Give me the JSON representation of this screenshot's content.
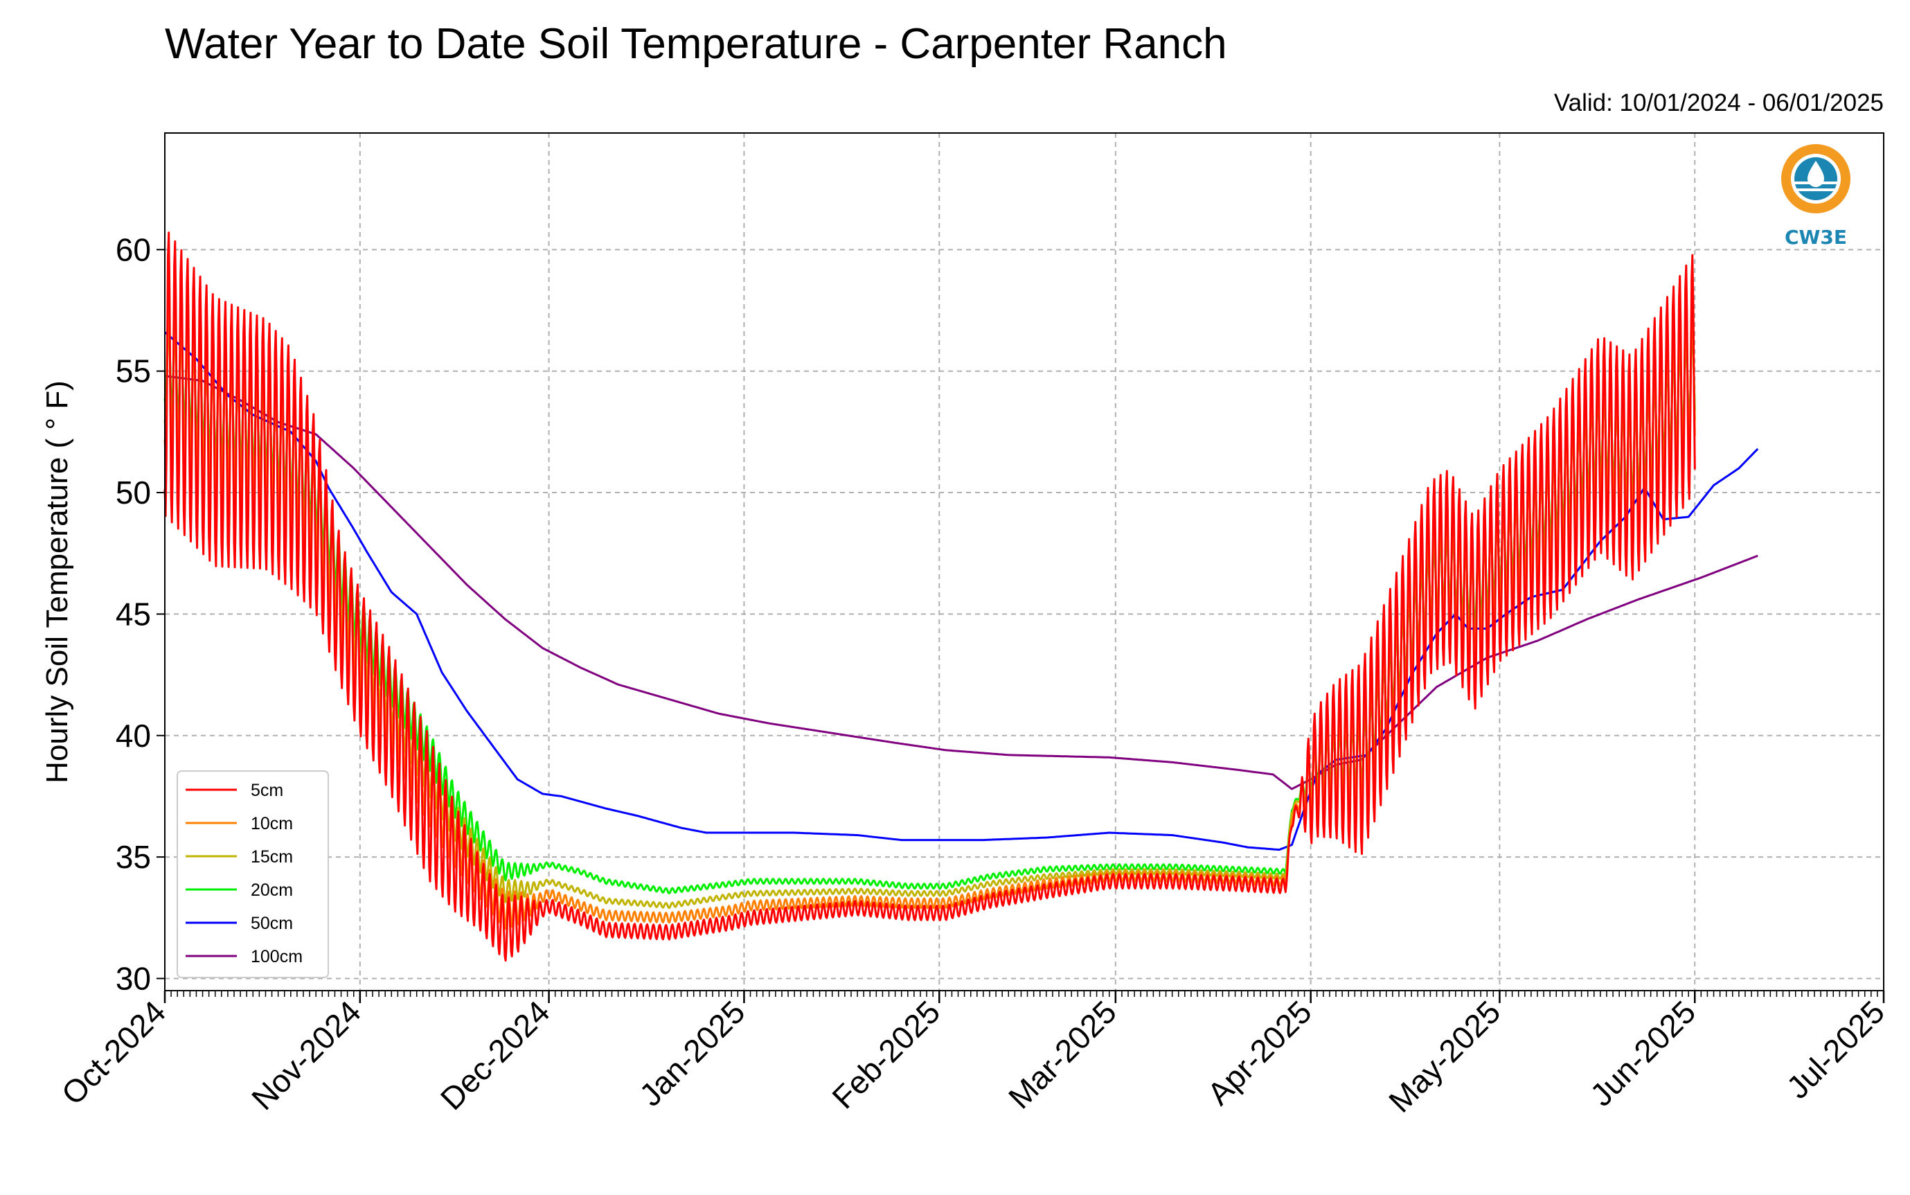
{
  "title": "Water Year to Date Soil Temperature - Carpenter Ranch",
  "valid_text": "Valid: 10/01/2024 - 06/01/2025",
  "logo_text": "CW3E",
  "chart_data": {
    "type": "line",
    "title": "Water Year to Date Soil Temperature - Carpenter Ranch",
    "ylabel": "Hourly Soil Temperature ( ° F)",
    "xlabel": "",
    "ylim": [
      29.5,
      64.8
    ],
    "yticks": [
      30,
      35,
      40,
      45,
      50,
      55,
      60
    ],
    "xlim": [
      0,
      273
    ],
    "x_unit": "days since 2024-10-01",
    "xticks": [
      {
        "day": 0,
        "label": "Oct-2024"
      },
      {
        "day": 31,
        "label": "Nov-2024"
      },
      {
        "day": 61,
        "label": "Dec-2024"
      },
      {
        "day": 92,
        "label": "Jan-2025"
      },
      {
        "day": 123,
        "label": "Feb-2025"
      },
      {
        "day": 151,
        "label": "Mar-2025"
      },
      {
        "day": 182,
        "label": "Apr-2025"
      },
      {
        "day": 212,
        "label": "May-2025"
      },
      {
        "day": 243,
        "label": "Jun-2025"
      },
      {
        "day": 273,
        "label": "Jul-2025"
      }
    ],
    "grid": true,
    "legend_position": "lower-left",
    "series": [
      {
        "name": "5cm",
        "color": "#ff0000",
        "amp": [
          [
            0,
            6
          ],
          [
            20,
            5
          ],
          [
            28,
            3
          ],
          [
            42,
            3
          ],
          [
            50,
            1.5
          ],
          [
            56,
            1.2
          ],
          [
            60,
            0.3
          ],
          [
            180,
            0.3
          ],
          [
            182,
            2.5
          ],
          [
            190,
            4
          ],
          [
            212,
            4
          ],
          [
            243,
            5
          ]
        ],
        "base": [
          [
            0,
            55
          ],
          [
            8,
            52.5
          ],
          [
            16,
            52
          ],
          [
            20,
            51
          ],
          [
            24,
            49
          ],
          [
            28,
            45
          ],
          [
            31,
            43
          ],
          [
            36,
            40.5
          ],
          [
            42,
            37
          ],
          [
            46,
            35
          ],
          [
            50,
            33.5
          ],
          [
            54,
            32
          ],
          [
            58,
            32.5
          ],
          [
            61,
            33
          ],
          [
            66,
            32.5
          ],
          [
            70,
            32
          ],
          [
            80,
            31.9
          ],
          [
            90,
            32.3
          ],
          [
            93,
            32.5
          ],
          [
            110,
            32.9
          ],
          [
            118,
            32.7
          ],
          [
            124,
            32.7
          ],
          [
            131,
            33.2
          ],
          [
            140,
            33.6
          ],
          [
            150,
            34
          ],
          [
            160,
            34
          ],
          [
            170,
            33.9
          ],
          [
            178,
            33.8
          ],
          [
            179,
            36.5
          ],
          [
            183,
            38.5
          ],
          [
            186,
            39
          ],
          [
            190,
            39
          ],
          [
            196,
            43
          ],
          [
            201,
            46.5
          ],
          [
            204,
            47
          ],
          [
            208,
            45
          ],
          [
            212,
            47
          ],
          [
            220,
            49
          ],
          [
            228,
            52
          ],
          [
            233,
            51
          ],
          [
            243,
            55
          ]
        ]
      },
      {
        "name": "10cm",
        "color": "#ff8000",
        "amp": [
          [
            0,
            3.5
          ],
          [
            20,
            3
          ],
          [
            28,
            2
          ],
          [
            42,
            1.5
          ],
          [
            50,
            0.9
          ],
          [
            56,
            0.7
          ],
          [
            60,
            0.2
          ],
          [
            180,
            0.2
          ],
          [
            182,
            1.5
          ],
          [
            190,
            2.5
          ],
          [
            212,
            2.7
          ],
          [
            243,
            3.3
          ]
        ],
        "base": [
          [
            0,
            55
          ],
          [
            8,
            52.8
          ],
          [
            16,
            52.2
          ],
          [
            20,
            51.2
          ],
          [
            24,
            49.3
          ],
          [
            28,
            45.5
          ],
          [
            31,
            43.5
          ],
          [
            36,
            41
          ],
          [
            42,
            37.8
          ],
          [
            46,
            35.8
          ],
          [
            50,
            34.2
          ],
          [
            54,
            32.8
          ],
          [
            58,
            33
          ],
          [
            61,
            33.5
          ],
          [
            66,
            33
          ],
          [
            70,
            32.6
          ],
          [
            80,
            32.5
          ],
          [
            90,
            32.8
          ],
          [
            93,
            33
          ],
          [
            110,
            33.2
          ],
          [
            118,
            33.1
          ],
          [
            124,
            33.1
          ],
          [
            131,
            33.5
          ],
          [
            140,
            33.9
          ],
          [
            150,
            34.2
          ],
          [
            160,
            34.2
          ],
          [
            170,
            34.1
          ],
          [
            178,
            34
          ],
          [
            179,
            36.7
          ],
          [
            183,
            38.6
          ],
          [
            186,
            39.1
          ],
          [
            190,
            39.2
          ],
          [
            196,
            43.1
          ],
          [
            201,
            46.5
          ],
          [
            204,
            47
          ],
          [
            208,
            45.3
          ],
          [
            212,
            47.2
          ],
          [
            220,
            49.2
          ],
          [
            228,
            52.2
          ],
          [
            233,
            51.2
          ],
          [
            243,
            55
          ]
        ]
      },
      {
        "name": "15cm",
        "color": "#c0b400",
        "amp": [
          [
            0,
            2.5
          ],
          [
            20,
            2
          ],
          [
            28,
            1.5
          ],
          [
            42,
            1
          ],
          [
            50,
            0.6
          ],
          [
            56,
            0.4
          ],
          [
            60,
            0.1
          ],
          [
            180,
            0.1
          ],
          [
            182,
            1
          ],
          [
            190,
            1.8
          ],
          [
            212,
            2
          ],
          [
            243,
            2.5
          ]
        ],
        "base": [
          [
            0,
            55
          ],
          [
            8,
            53
          ],
          [
            16,
            52.4
          ],
          [
            20,
            51.4
          ],
          [
            24,
            49.6
          ],
          [
            28,
            46
          ],
          [
            31,
            44
          ],
          [
            36,
            41.5
          ],
          [
            42,
            38.5
          ],
          [
            46,
            36.5
          ],
          [
            50,
            35
          ],
          [
            54,
            33.6
          ],
          [
            58,
            33.7
          ],
          [
            61,
            34
          ],
          [
            66,
            33.6
          ],
          [
            70,
            33.2
          ],
          [
            80,
            33
          ],
          [
            90,
            33.4
          ],
          [
            93,
            33.5
          ],
          [
            110,
            33.6
          ],
          [
            118,
            33.5
          ],
          [
            124,
            33.5
          ],
          [
            131,
            33.9
          ],
          [
            140,
            34.2
          ],
          [
            150,
            34.4
          ],
          [
            160,
            34.4
          ],
          [
            170,
            34.3
          ],
          [
            178,
            34.2
          ],
          [
            179,
            36.9
          ],
          [
            183,
            38.7
          ],
          [
            186,
            39.1
          ],
          [
            190,
            39.2
          ],
          [
            196,
            43.2
          ],
          [
            201,
            46.4
          ],
          [
            204,
            47
          ],
          [
            208,
            45.5
          ],
          [
            212,
            47.4
          ],
          [
            220,
            49.4
          ],
          [
            228,
            52.3
          ],
          [
            233,
            51.4
          ],
          [
            243,
            55
          ]
        ]
      },
      {
        "name": "20cm",
        "color": "#00ee00",
        "amp": [
          [
            0,
            2
          ],
          [
            20,
            1.7
          ],
          [
            28,
            1.2
          ],
          [
            42,
            0.8
          ],
          [
            50,
            0.5
          ],
          [
            56,
            0.3
          ],
          [
            60,
            0.1
          ],
          [
            180,
            0.1
          ],
          [
            182,
            0.8
          ],
          [
            190,
            1.4
          ],
          [
            212,
            1.6
          ],
          [
            243,
            2
          ]
        ],
        "base": [
          [
            0,
            55.5
          ],
          [
            8,
            53.2
          ],
          [
            16,
            52.6
          ],
          [
            20,
            51.6
          ],
          [
            24,
            50
          ],
          [
            28,
            46.6
          ],
          [
            31,
            44.6
          ],
          [
            36,
            42.2
          ],
          [
            42,
            39.4
          ],
          [
            46,
            37.3
          ],
          [
            50,
            35.8
          ],
          [
            54,
            34.4
          ],
          [
            58,
            34.5
          ],
          [
            61,
            34.7
          ],
          [
            66,
            34.4
          ],
          [
            70,
            34
          ],
          [
            80,
            33.6
          ],
          [
            90,
            33.9
          ],
          [
            93,
            34
          ],
          [
            110,
            34
          ],
          [
            118,
            33.8
          ],
          [
            124,
            33.8
          ],
          [
            131,
            34.2
          ],
          [
            140,
            34.5
          ],
          [
            150,
            34.6
          ],
          [
            160,
            34.6
          ],
          [
            170,
            34.5
          ],
          [
            178,
            34.4
          ],
          [
            179,
            37
          ],
          [
            183,
            38.8
          ],
          [
            186,
            39.1
          ],
          [
            190,
            39.2
          ],
          [
            196,
            43.2
          ],
          [
            201,
            46.3
          ],
          [
            204,
            47
          ],
          [
            208,
            45.8
          ],
          [
            212,
            47.5
          ],
          [
            220,
            49.6
          ],
          [
            228,
            52.4
          ],
          [
            233,
            51.5
          ],
          [
            243,
            55
          ]
        ]
      },
      {
        "name": "50cm",
        "color": "#0000ff",
        "amp": [
          [
            0,
            0
          ]
        ],
        "base": [
          [
            0,
            56.6
          ],
          [
            5,
            55.5
          ],
          [
            10,
            54
          ],
          [
            14,
            53.2
          ],
          [
            20,
            52.5
          ],
          [
            24,
            51.3
          ],
          [
            26,
            50.2
          ],
          [
            30,
            48.5
          ],
          [
            32,
            47.6
          ],
          [
            36,
            45.9
          ],
          [
            40,
            45
          ],
          [
            44,
            42.6
          ],
          [
            48,
            41
          ],
          [
            52,
            39.6
          ],
          [
            56,
            38.2
          ],
          [
            60,
            37.6
          ],
          [
            63,
            37.5
          ],
          [
            70,
            37
          ],
          [
            75,
            36.7
          ],
          [
            82,
            36.2
          ],
          [
            86,
            36
          ],
          [
            93,
            36
          ],
          [
            100,
            36
          ],
          [
            110,
            35.9
          ],
          [
            117,
            35.7
          ],
          [
            130,
            35.7
          ],
          [
            140,
            35.8
          ],
          [
            150,
            36
          ],
          [
            160,
            35.9
          ],
          [
            168,
            35.6
          ],
          [
            172,
            35.4
          ],
          [
            177,
            35.3
          ],
          [
            179,
            35.5
          ],
          [
            181,
            37
          ],
          [
            183,
            38.4
          ],
          [
            186,
            39
          ],
          [
            191,
            39.2
          ],
          [
            194,
            40.3
          ],
          [
            198,
            42.5
          ],
          [
            202,
            44.2
          ],
          [
            205,
            45
          ],
          [
            207,
            44.4
          ],
          [
            210,
            44.4
          ],
          [
            213,
            45
          ],
          [
            217,
            45.7
          ],
          [
            222,
            46
          ],
          [
            228,
            48
          ],
          [
            232,
            49
          ],
          [
            235,
            50.2
          ],
          [
            238,
            48.9
          ],
          [
            242,
            49
          ],
          [
            246,
            50.3
          ],
          [
            250,
            51
          ],
          [
            253,
            51.8
          ]
        ]
      },
      {
        "name": "100cm",
        "color": "#800080",
        "amp": [
          [
            0,
            0
          ]
        ],
        "base": [
          [
            0,
            54.8
          ],
          [
            6,
            54.6
          ],
          [
            12,
            53.8
          ],
          [
            18,
            52.9
          ],
          [
            24,
            52.4
          ],
          [
            30,
            51
          ],
          [
            36,
            49.4
          ],
          [
            42,
            47.8
          ],
          [
            48,
            46.2
          ],
          [
            54,
            44.8
          ],
          [
            60,
            43.6
          ],
          [
            66,
            42.8
          ],
          [
            72,
            42.1
          ],
          [
            80,
            41.5
          ],
          [
            88,
            40.9
          ],
          [
            96,
            40.5
          ],
          [
            106,
            40.1
          ],
          [
            116,
            39.7
          ],
          [
            124,
            39.4
          ],
          [
            134,
            39.2
          ],
          [
            150,
            39.1
          ],
          [
            160,
            38.9
          ],
          [
            170,
            38.6
          ],
          [
            176,
            38.4
          ],
          [
            179,
            37.8
          ],
          [
            182,
            38.2
          ],
          [
            186,
            38.8
          ],
          [
            190,
            39
          ],
          [
            196,
            40.5
          ],
          [
            202,
            42
          ],
          [
            210,
            43.2
          ],
          [
            218,
            43.9
          ],
          [
            226,
            44.8
          ],
          [
            234,
            45.6
          ],
          [
            244,
            46.5
          ],
          [
            253,
            47.4
          ]
        ]
      }
    ]
  }
}
